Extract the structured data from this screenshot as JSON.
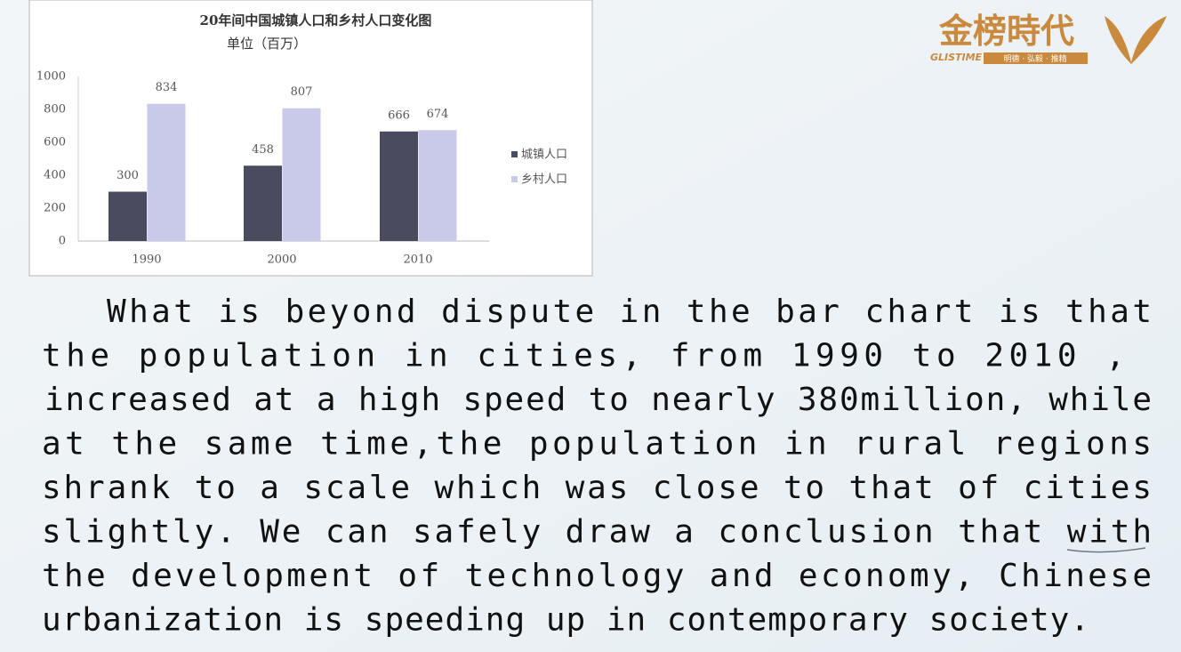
{
  "chart_data": {
    "type": "bar",
    "title": "20年间中国城镇人口和乡村人口变化图",
    "subtitle": "单位（百万）",
    "categories": [
      "1990",
      "2000",
      "2010"
    ],
    "series": [
      {
        "name": "城镇人口",
        "color": "#4b4b5f",
        "values": [
          300,
          458,
          666
        ]
      },
      {
        "name": "乡村人口",
        "color": "#c9c9ea",
        "values": [
          834,
          807,
          674
        ]
      }
    ],
    "ylim": [
      0,
      1000
    ],
    "yticks": [
      0,
      200,
      400,
      600,
      800,
      1000
    ],
    "grid": false,
    "legend": "right",
    "data_labels": true
  },
  "logo": {
    "name": "金榜時代",
    "brand": "GLISTIME",
    "motto": "明德 · 弘毅 · 推精"
  },
  "paragraph": {
    "lines": [
      "What is beyond dispute in the bar chart is that",
      "the population in cities, from 1990 to 2010 ,",
      "increased at a high speed to nearly 380million, while",
      "at the same time,the population in rural regions",
      "shrank to a scale which was close to that of cities",
      "slightly. We can safely draw a conclusion that with",
      "the development of technology and economy, Chinese",
      "urbanization is speeding up in contemporary society."
    ]
  }
}
